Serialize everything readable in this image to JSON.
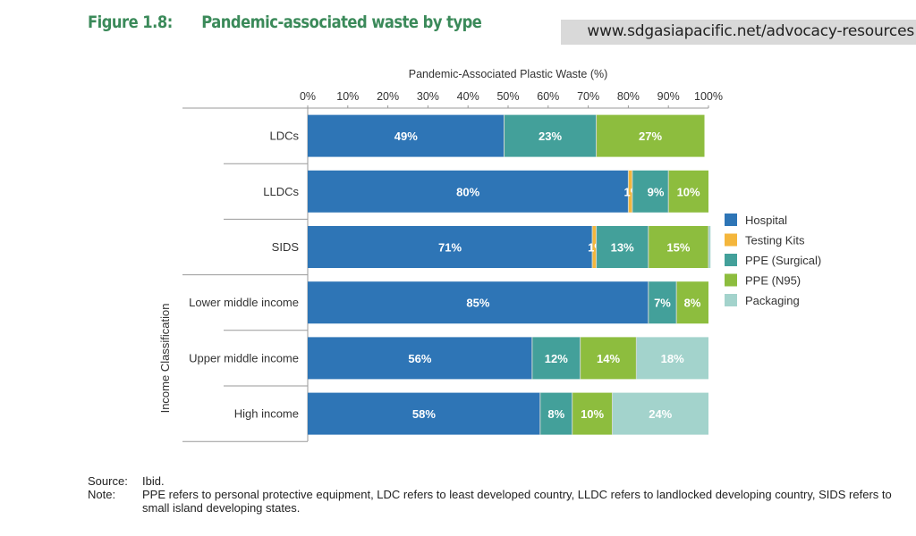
{
  "header": {
    "figure_number": "Figure 1.8:",
    "figure_title": "Pandemic-associated waste by type",
    "url": "www.sdgasiapacific.net/advocacy-resources"
  },
  "colors": {
    "title": "#3b8a5a",
    "Hospital": "#2e75b6",
    "Testing Kits": "#f4b63c",
    "PPE (Surgical)": "#43a09a",
    "PPE (N95)": "#8dbd3e",
    "Packaging": "#a3d3cc"
  },
  "chart_data": {
    "type": "bar",
    "orientation": "horizontal",
    "stacked": true,
    "title": "Pandemic-associated waste by type",
    "xlabel": "Pandemic-Associated Plastic Waste (%)",
    "ylabel": "Income Classification",
    "xlim": [
      0,
      100
    ],
    "xticks": [
      "0%",
      "10%",
      "20%",
      "30%",
      "40%",
      "50%",
      "60%",
      "70%",
      "80%",
      "90%",
      "100%"
    ],
    "x_axis_position": "top",
    "legend_position": "right",
    "grid": false,
    "categories": [
      "LDCs",
      "LLDCs",
      "SIDS",
      "Lower middle income",
      "Upper middle income",
      "High income"
    ],
    "series": [
      {
        "name": "Hospital",
        "values": [
          49,
          80,
          71,
          85,
          56,
          58
        ],
        "labels": [
          "49%",
          "80%",
          "71%",
          "85%",
          "56%",
          "58%"
        ]
      },
      {
        "name": "Testing Kits",
        "values": [
          0,
          1,
          1,
          0,
          0,
          0
        ],
        "labels": [
          "",
          "1%",
          "1%",
          "",
          "",
          ""
        ]
      },
      {
        "name": "PPE (Surgical)",
        "values": [
          23,
          9,
          13,
          7,
          12,
          8
        ],
        "labels": [
          "23%",
          "9%",
          "13%",
          "7%",
          "12%",
          "8%"
        ]
      },
      {
        "name": "PPE (N95)",
        "values": [
          27,
          10,
          15,
          8,
          14,
          10
        ],
        "labels": [
          "27%",
          "10%",
          "15%",
          "8%",
          "14%",
          "10%"
        ]
      },
      {
        "name": "Packaging",
        "values": [
          0,
          0,
          0.5,
          0,
          18,
          24
        ],
        "labels": [
          "",
          "",
          "",
          "",
          "18%",
          "24%"
        ]
      }
    ]
  },
  "footer": {
    "source_label": "Source:",
    "source_text": "Ibid.",
    "note_label": "Note:",
    "note_text": "PPE refers to personal protective equipment, LDC refers to least developed country, LLDC refers to landlocked developing country, SIDS refers to small island developing states."
  }
}
